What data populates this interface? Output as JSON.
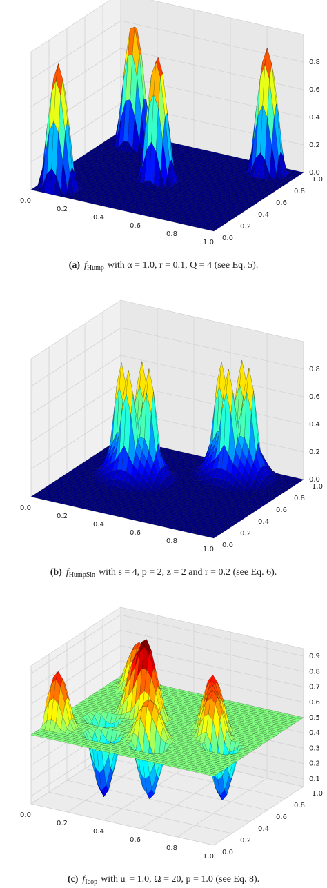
{
  "chart_data": [
    {
      "type": "surface",
      "colormap": "jet",
      "xlim": [
        0,
        1
      ],
      "ylim": [
        0,
        1
      ],
      "zlim": [
        0,
        1
      ],
      "xticks": [
        {
          "value": 0,
          "label": "0.0"
        },
        0.2,
        0.4,
        0.6,
        0.8,
        {
          "value": 1,
          "label": "1.0"
        }
      ],
      "yticks": [
        {
          "value": 0,
          "label": "0.0"
        },
        0.2,
        0.4,
        0.6,
        0.8,
        {
          "value": 1,
          "label": "1.0"
        }
      ],
      "zticks": [
        {
          "value": 0,
          "label": "0.0"
        },
        0.2,
        0.4,
        0.6,
        0.8
      ],
      "surface": {
        "base": 0,
        "peaks": [
          {
            "x": 0.1,
            "y": 0.1,
            "height": 0.9,
            "width": 0.1
          },
          {
            "x": 0.14,
            "y": 0.86,
            "height": 0.9,
            "width": 0.1
          },
          {
            "x": 0.45,
            "y": 0.49,
            "height": 0.9,
            "width": 0.1
          },
          {
            "x": 0.85,
            "y": 0.9,
            "height": 0.9,
            "width": 0.1
          }
        ]
      },
      "caption": {
        "label": "(a)",
        "symbol": "f",
        "subscript": "Hump",
        "text": "with α = 1.0, r = 0.1, Q = 4 (see Eq. 5)."
      }
    },
    {
      "type": "surface",
      "colormap": "jet",
      "xlim": [
        0,
        1
      ],
      "ylim": [
        0,
        1
      ],
      "zlim": [
        0,
        1
      ],
      "xticks": [
        {
          "value": 0,
          "label": "0.0"
        },
        0.2,
        0.4,
        0.6,
        0.8,
        {
          "value": 1,
          "label": "1.0"
        }
      ],
      "yticks": [
        {
          "value": 0,
          "label": "0.0"
        },
        0.2,
        0.4,
        0.6,
        0.8,
        {
          "value": 1,
          "label": "1.0"
        }
      ],
      "zticks": [
        {
          "value": 0,
          "label": "0.0"
        },
        0.2,
        0.4,
        0.6,
        0.8
      ],
      "surface": {
        "base": 0,
        "peaks": [
          {
            "x": 0.3,
            "y": 0.55,
            "height": 0.4,
            "width": 0.22
          },
          {
            "x": 0.22,
            "y": 0.55,
            "height": 0.5,
            "width": 0.06
          },
          {
            "x": 0.38,
            "y": 0.55,
            "height": 0.5,
            "width": 0.06
          },
          {
            "x": 0.3,
            "y": 0.47,
            "height": 0.5,
            "width": 0.06
          },
          {
            "x": 0.3,
            "y": 0.63,
            "height": 0.5,
            "width": 0.06
          },
          {
            "x": 0.7,
            "y": 0.85,
            "height": 0.4,
            "width": 0.22
          },
          {
            "x": 0.62,
            "y": 0.85,
            "height": 0.5,
            "width": 0.06
          },
          {
            "x": 0.78,
            "y": 0.85,
            "height": 0.5,
            "width": 0.06
          },
          {
            "x": 0.7,
            "y": 0.77,
            "height": 0.5,
            "width": 0.06
          },
          {
            "x": 0.7,
            "y": 0.93,
            "height": 0.5,
            "width": 0.06
          }
        ]
      },
      "caption": {
        "label": "(b)",
        "symbol": "f",
        "subscript": "HumpSin",
        "text": "with s = 4, p = 2, z = 2 and r = 0.2 (see Eq. 6)."
      }
    },
    {
      "type": "surface",
      "colormap": "jet",
      "xlim": [
        0,
        1
      ],
      "ylim": [
        0,
        1
      ],
      "zlim": [
        0.05,
        0.95
      ],
      "xticks": [
        {
          "value": 0,
          "label": "0.0"
        },
        0.2,
        0.4,
        0.6,
        0.8,
        {
          "value": 1,
          "label": "1.0"
        }
      ],
      "yticks": [
        {
          "value": 0,
          "label": "0.0"
        },
        0.2,
        0.4,
        0.6,
        0.8,
        {
          "value": 1,
          "label": "1.0"
        }
      ],
      "zticks": [
        0.1,
        0.2,
        0.3,
        0.4,
        0.5,
        0.6,
        0.7,
        0.8,
        0.9
      ],
      "surface": {
        "base": 0.5,
        "peaks": [
          {
            "x": 0.3,
            "y": 0.6,
            "height": 0.4,
            "width": 0.12
          },
          {
            "x": 0.38,
            "y": 0.55,
            "height": 0.35,
            "width": 0.1
          },
          {
            "x": 0.15,
            "y": 0.9,
            "height": 0.3,
            "width": 0.12
          },
          {
            "x": 0.7,
            "y": 0.6,
            "height": 0.35,
            "width": 0.1
          },
          {
            "x": 0.75,
            "y": 0.5,
            "height": 0.3,
            "width": 0.1
          },
          {
            "x": 0.5,
            "y": 0.3,
            "height": 0.25,
            "width": 0.12
          },
          {
            "x": 0.05,
            "y": 0.2,
            "height": 0.35,
            "width": 0.1
          },
          {
            "x": 0.3,
            "y": 0.2,
            "height": -0.4,
            "width": 0.1
          },
          {
            "x": 0.55,
            "y": 0.2,
            "height": -0.35,
            "width": 0.1
          },
          {
            "x": 0.85,
            "y": 0.4,
            "height": -0.35,
            "width": 0.1
          },
          {
            "x": 0.2,
            "y": 0.4,
            "height": -0.3,
            "width": 0.1
          }
        ]
      },
      "caption": {
        "label": "(c)",
        "symbol": "f",
        "subscript": "Icop",
        "text": "with uᵢ = 1.0, Ω = 20, p = 1.0 (see Eq. 8)."
      }
    }
  ]
}
